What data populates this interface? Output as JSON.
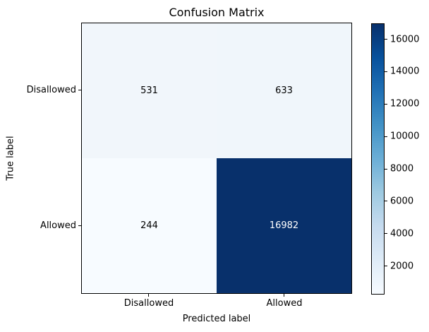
{
  "chart_data": {
    "type": "heatmap",
    "title": "Confusion Matrix",
    "xlabel": "Predicted label",
    "ylabel": "True label",
    "x_tick_labels": [
      "Disallowed",
      "Allowed"
    ],
    "y_tick_labels": [
      "Disallowed",
      "Allowed"
    ],
    "matrix": [
      [
        531,
        633
      ],
      [
        244,
        16982
      ]
    ],
    "vmin": 244,
    "vmax": 16982,
    "colormap": "Blues",
    "legend_position": "colorbar-right",
    "colorbar_ticks": [
      2000,
      4000,
      6000,
      8000,
      10000,
      12000,
      14000,
      16000
    ],
    "cell_colors": [
      [
        "#f1f6fb",
        "#f0f6fb"
      ],
      [
        "#f7fbff",
        "#08306b"
      ]
    ],
    "cell_text_colors": [
      [
        "#000000",
        "#000000"
      ],
      [
        "#000000",
        "#ffffff"
      ]
    ]
  },
  "colors": {
    "background": "#ffffff",
    "axes_edge": "#000000",
    "text": "#000000",
    "colormap_stops": [
      "#f7fbff",
      "#deebf7",
      "#c6dbef",
      "#9ecae1",
      "#6baed6",
      "#4292c6",
      "#2171b5",
      "#08519c",
      "#08306b"
    ]
  }
}
